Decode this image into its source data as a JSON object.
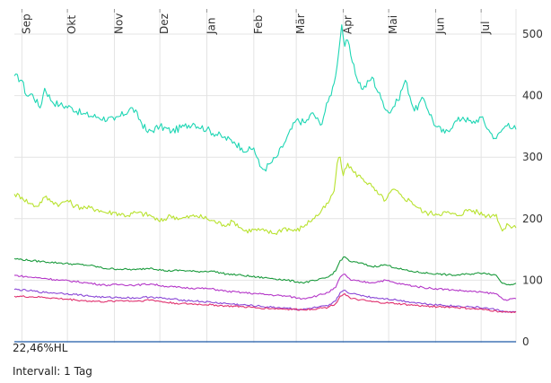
{
  "chart_data": {
    "type": "line",
    "months": [
      "Sep",
      "Okt",
      "Nov",
      "Dez",
      "Jan",
      "Feb",
      "Mär",
      "Apr",
      "Mai",
      "Jun",
      "Jul"
    ],
    "month_start_day": [
      5,
      35,
      66,
      96,
      127,
      158,
      186,
      217,
      247,
      278,
      308
    ],
    "x_range_days": [
      0,
      331
    ],
    "y_ticks": [
      0,
      100,
      200,
      300,
      400,
      500
    ],
    "ylim": [
      0,
      520
    ],
    "grid": true,
    "colors": {
      "series1": "#1ed6b4",
      "series2": "#b8e22e",
      "series3": "#1a9a3c",
      "series4": "#b436c8",
      "series5": "#8a46d6",
      "series6": "#e0306e",
      "baseline": "#1f5aa6",
      "grid": "#e4e4e4",
      "axis_text": "#333333"
    },
    "series": [
      {
        "color_key": "series1",
        "x": [
          0,
          5,
          8,
          12,
          17,
          20,
          25,
          30,
          38,
          45,
          55,
          66,
          78,
          88,
          96,
          104,
          112,
          118,
          127,
          138,
          145,
          150,
          154,
          158,
          162,
          165,
          169,
          173,
          178,
          186,
          192,
          197,
          202,
          207,
          211,
          214,
          216,
          218,
          220,
          222,
          225,
          230,
          236,
          242,
          247,
          253,
          258,
          264,
          270,
          278,
          284,
          290,
          296,
          302,
          308,
          314,
          318,
          322,
          326,
          331
        ],
        "y": [
          432,
          425,
          400,
          402,
          380,
          412,
          390,
          385,
          380,
          370,
          365,
          360,
          380,
          340,
          350,
          342,
          350,
          355,
          345,
          332,
          325,
          315,
          310,
          315,
          285,
          280,
          290,
          300,
          322,
          360,
          356,
          372,
          352,
          390,
          420,
          470,
          515,
          480,
          490,
          465,
          435,
          410,
          430,
          395,
          372,
          392,
          425,
          375,
          395,
          350,
          339,
          355,
          365,
          355,
          365,
          340,
          330,
          345,
          355,
          345
        ]
      },
      {
        "color_key": "series2",
        "x": [
          0,
          5,
          10,
          15,
          20,
          25,
          30,
          35,
          40,
          47,
          55,
          60,
          66,
          75,
          80,
          90,
          96,
          103,
          110,
          120,
          127,
          138,
          145,
          152,
          158,
          165,
          172,
          178,
          186,
          192,
          197,
          202,
          207,
          211,
          213,
          215,
          217,
          220,
          224,
          230,
          236,
          240,
          245,
          250,
          256,
          262,
          270,
          278,
          285,
          292,
          300,
          306,
          312,
          318,
          322,
          326,
          331
        ],
        "y": [
          240,
          235,
          225,
          220,
          235,
          228,
          223,
          230,
          220,
          218,
          215,
          210,
          210,
          205,
          210,
          205,
          195,
          205,
          200,
          205,
          200,
          190,
          195,
          180,
          182,
          180,
          176,
          185,
          180,
          190,
          200,
          210,
          225,
          245,
          290,
          300,
          270,
          290,
          275,
          265,
          252,
          240,
          230,
          248,
          235,
          228,
          210,
          208,
          210,
          205,
          215,
          210,
          205,
          207,
          180,
          190,
          185
        ]
      },
      {
        "color_key": "series3",
        "x": [
          0,
          10,
          20,
          30,
          40,
          50,
          60,
          70,
          80,
          90,
          100,
          110,
          120,
          130,
          140,
          150,
          160,
          170,
          180,
          190,
          200,
          207,
          212,
          215,
          218,
          222,
          228,
          236,
          245,
          252,
          260,
          270,
          280,
          290,
          300,
          310,
          318,
          322,
          326,
          331
        ],
        "y": [
          135,
          132,
          130,
          128,
          126,
          124,
          119,
          118,
          117,
          120,
          115,
          116,
          114,
          115,
          110,
          108,
          105,
          103,
          100,
          96,
          100,
          105,
          115,
          132,
          138,
          130,
          128,
          122,
          125,
          120,
          115,
          112,
          110,
          108,
          110,
          112,
          108,
          95,
          93,
          95
        ]
      },
      {
        "color_key": "series4",
        "x": [
          0,
          10,
          20,
          30,
          40,
          50,
          60,
          70,
          80,
          90,
          100,
          110,
          120,
          130,
          140,
          150,
          160,
          170,
          180,
          190,
          200,
          207,
          212,
          215,
          218,
          222,
          228,
          236,
          245,
          252,
          260,
          270,
          280,
          290,
          300,
          310,
          318,
          322,
          326,
          331
        ],
        "y": [
          108,
          105,
          103,
          100,
          98,
          95,
          92,
          93,
          92,
          94,
          90,
          88,
          87,
          86,
          82,
          80,
          78,
          76,
          74,
          70,
          75,
          80,
          88,
          105,
          110,
          100,
          98,
          96,
          100,
          95,
          92,
          88,
          86,
          84,
          82,
          80,
          78,
          70,
          68,
          70
        ]
      },
      {
        "color_key": "series5",
        "x": [
          0,
          10,
          20,
          30,
          40,
          50,
          60,
          70,
          80,
          90,
          100,
          110,
          120,
          130,
          140,
          150,
          160,
          170,
          180,
          190,
          200,
          207,
          212,
          215,
          218,
          222,
          228,
          236,
          245,
          252,
          260,
          270,
          280,
          290,
          300,
          310,
          318,
          322,
          326,
          331
        ],
        "y": [
          85,
          83,
          80,
          79,
          77,
          74,
          72,
          72,
          71,
          73,
          70,
          68,
          66,
          64,
          62,
          60,
          58,
          56,
          55,
          52,
          56,
          58,
          66,
          80,
          84,
          78,
          76,
          72,
          70,
          68,
          65,
          62,
          60,
          58,
          57,
          55,
          52,
          50,
          48,
          49
        ]
      },
      {
        "color_key": "series6",
        "x": [
          0,
          10,
          20,
          30,
          40,
          50,
          60,
          70,
          80,
          90,
          100,
          110,
          120,
          130,
          140,
          150,
          160,
          170,
          180,
          190,
          200,
          207,
          212,
          215,
          218,
          222,
          228,
          236,
          245,
          252,
          260,
          270,
          280,
          290,
          300,
          310,
          318,
          322,
          326,
          331
        ],
        "y": [
          74,
          73,
          72,
          70,
          68,
          66,
          65,
          67,
          66,
          68,
          64,
          62,
          61,
          60,
          58,
          57,
          55,
          54,
          53,
          52,
          54,
          56,
          62,
          74,
          78,
          70,
          68,
          65,
          63,
          62,
          60,
          58,
          57,
          56,
          54,
          52,
          50,
          48,
          48,
          49
        ]
      }
    ],
    "baseline_value": 0
  },
  "footer": {
    "bottom_label": "22,46%HL",
    "interval_label": "Intervall: 1 Tag"
  }
}
